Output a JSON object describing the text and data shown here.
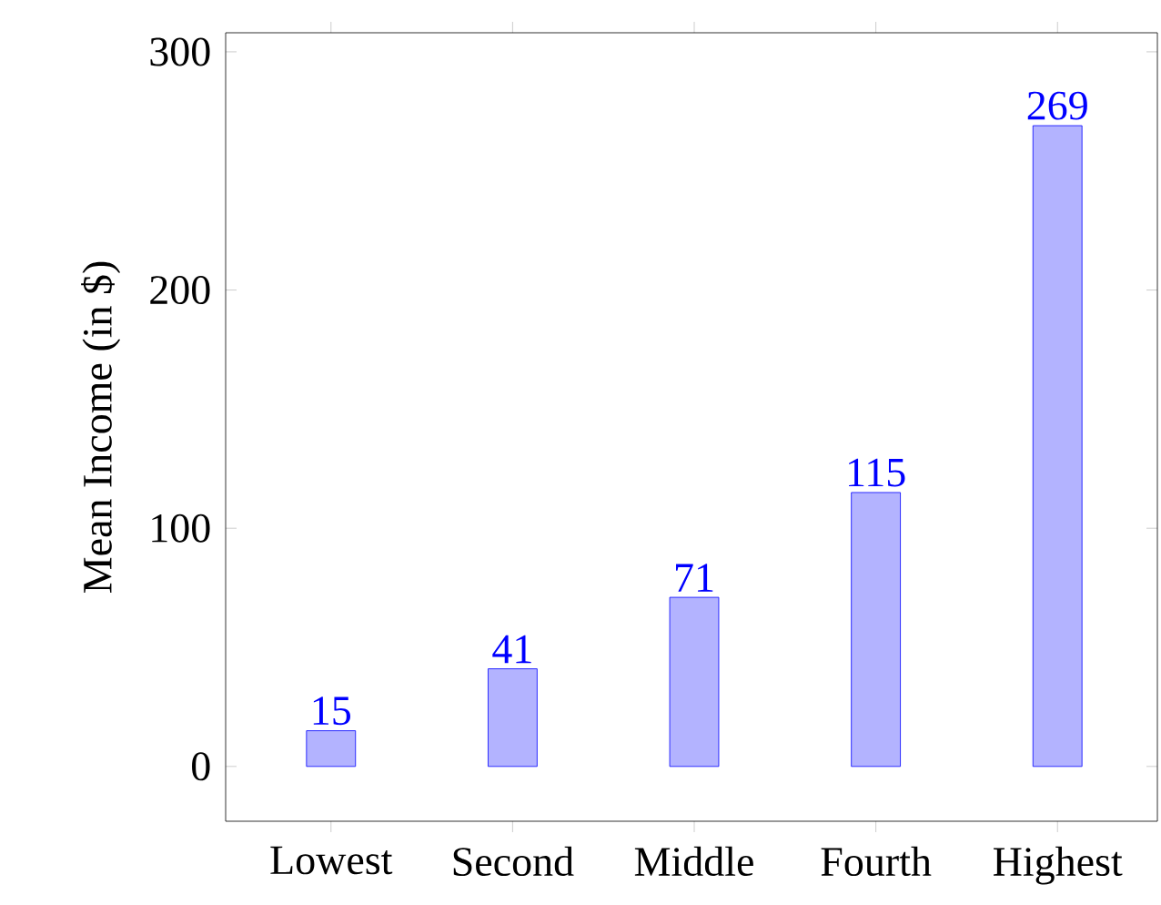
{
  "chart_data": {
    "type": "bar",
    "ylabel": "Mean Income (in $)",
    "categories": [
      "Lowest",
      "Second",
      "Middle",
      "Fourth",
      "Highest"
    ],
    "values": [
      15,
      41,
      71,
      115,
      269
    ],
    "color": "#b3b3ff",
    "ylim": [
      -23,
      308
    ],
    "yticks": [
      0,
      100,
      200,
      300
    ],
    "data_labels": true
  }
}
